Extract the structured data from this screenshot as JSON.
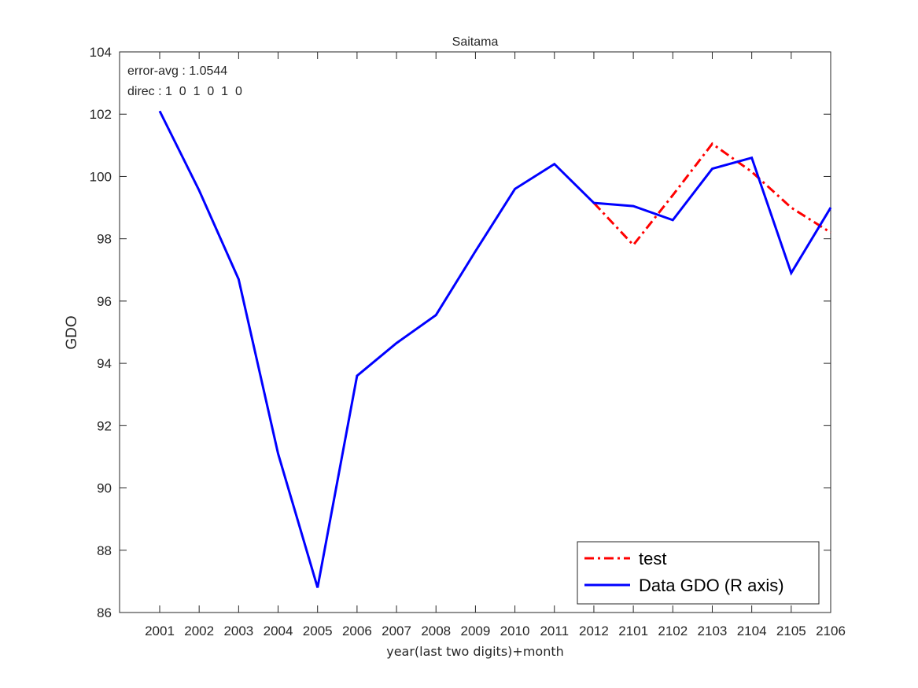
{
  "chart_data": {
    "type": "line",
    "title": "Saitama",
    "xlabel": "year(last two digits)+month",
    "ylabel": "GDO",
    "categories": [
      "2001",
      "2002",
      "2003",
      "2004",
      "2005",
      "2006",
      "2007",
      "2008",
      "2009",
      "2010",
      "2011",
      "2012",
      "2101",
      "2102",
      "2103",
      "2104",
      "2105",
      "2106"
    ],
    "ylim": [
      86,
      104
    ],
    "yticks": [
      86,
      88,
      90,
      92,
      94,
      96,
      98,
      100,
      102,
      104
    ],
    "grid": false,
    "legend_position": "bottom-right",
    "series": [
      {
        "name": "test",
        "color": "#ff0000",
        "style": "dash-dot",
        "values": [
          null,
          null,
          null,
          null,
          null,
          null,
          null,
          null,
          null,
          null,
          null,
          99.15,
          97.8,
          99.4,
          101.05,
          100.15,
          99.0,
          98.2
        ]
      },
      {
        "name": "Data GDO (R axis)",
        "color": "#0000ff",
        "style": "solid",
        "values": [
          102.1,
          99.55,
          96.7,
          91.1,
          86.8,
          93.6,
          94.65,
          95.55,
          97.6,
          99.6,
          100.4,
          99.15,
          99.05,
          98.6,
          100.25,
          100.6,
          96.9,
          99.0
        ]
      }
    ],
    "annotations": [
      "error-avg : 1.0544",
      "direc : 1  0  1  0  1  0"
    ]
  }
}
